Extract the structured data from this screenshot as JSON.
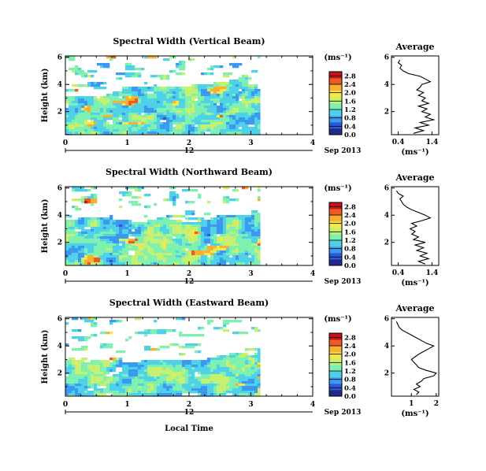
{
  "chart_data": {
    "type": "heatmap",
    "x_common_label": "Local Time",
    "date_label": "Sep 2013",
    "date_tick": "12",
    "colorbar_unit": "(ms⁻¹)",
    "colorbar_ticks": [
      "0.0",
      "0.4",
      "0.8",
      "1.2",
      "1.6",
      "2.0",
      "2.4",
      "2.8"
    ],
    "colorbar_range": [
      0,
      3.0
    ],
    "colormap": [
      "#1f2a8c",
      "#2a5ad6",
      "#3d98f0",
      "#4fd1e8",
      "#7ef0b0",
      "#c8f070",
      "#f6e84a",
      "#f7b030",
      "#ee5a22",
      "#c8121a"
    ],
    "panels": [
      {
        "title": "Spectral Width (Vertical Beam)",
        "ylabel": "Height (km)",
        "x_ticks": [
          "0",
          "1",
          "2",
          "3",
          "4"
        ],
        "xlim": [
          0,
          4
        ],
        "y_ticks": [
          "2",
          "4",
          "6"
        ],
        "ylim": [
          0.3,
          6.1
        ],
        "x_end": 3.15,
        "avg_title": "Average",
        "avg_xlabel": "(ms⁻¹)",
        "avg_x_ticks": [
          "0.4",
          "1.4"
        ],
        "avg_xlim": [
          0.2,
          1.6
        ],
        "avg_heights": [
          0.4,
          0.6,
          0.8,
          1.0,
          1.2,
          1.4,
          1.6,
          1.8,
          2.0,
          2.2,
          2.4,
          2.6,
          2.8,
          3.0,
          3.2,
          3.4,
          3.6,
          3.8,
          4.0,
          4.2,
          4.4,
          4.6,
          4.8,
          5.0,
          5.2,
          5.4,
          5.6,
          5.8
        ],
        "avg_values": [
          0.85,
          1.15,
          0.9,
          1.3,
          1.05,
          1.45,
          1.2,
          1.35,
          1.1,
          1.25,
          1.0,
          1.3,
          1.1,
          1.2,
          1.0,
          1.15,
          0.95,
          1.05,
          1.1,
          1.35,
          1.2,
          1.05,
          0.7,
          0.55,
          0.45,
          0.5,
          0.4,
          0.45
        ]
      },
      {
        "title": "Spectral Width (Northward Beam)",
        "ylabel": "Height (km)",
        "x_ticks": [
          "0",
          "1",
          "2",
          "3",
          "4"
        ],
        "xlim": [
          0,
          4
        ],
        "y_ticks": [
          "2",
          "4",
          "6"
        ],
        "ylim": [
          0.3,
          6.1
        ],
        "x_end": 3.15,
        "avg_title": "Average",
        "avg_xlabel": "(ms⁻¹)",
        "avg_x_ticks": [
          "0.4",
          "1.4"
        ],
        "avg_xlim": [
          0.2,
          1.6
        ],
        "avg_heights": [
          0.4,
          0.6,
          0.8,
          1.0,
          1.2,
          1.4,
          1.6,
          1.8,
          2.0,
          2.2,
          2.4,
          2.6,
          2.8,
          3.0,
          3.2,
          3.4,
          3.6,
          3.8,
          4.0,
          4.2,
          4.4,
          4.6,
          4.8,
          5.0,
          5.2,
          5.4,
          5.6,
          5.8
        ],
        "avg_values": [
          1.2,
          1.0,
          1.3,
          1.05,
          1.25,
          0.95,
          1.15,
          0.9,
          1.2,
          0.85,
          1.0,
          0.8,
          0.9,
          0.75,
          0.95,
          0.8,
          1.1,
          1.35,
          1.2,
          1.0,
          0.8,
          0.65,
          0.55,
          0.5,
          0.45,
          0.55,
          0.4,
          0.35
        ]
      },
      {
        "title": "Spectral Width (Eastward Beam)",
        "ylabel": "Height (km)",
        "x_ticks": [
          "0",
          "1",
          "2",
          "3",
          "4"
        ],
        "xlim": [
          0,
          4
        ],
        "y_ticks": [
          "2",
          "4",
          "6"
        ],
        "ylim": [
          0.3,
          6.1
        ],
        "x_end": 3.15,
        "avg_title": "Average",
        "avg_xlabel": "(ms⁻¹)",
        "avg_x_ticks": [
          "1",
          "2"
        ],
        "avg_xlim": [
          0.2,
          2.1
        ],
        "avg_heights": [
          0.4,
          0.6,
          0.8,
          1.0,
          1.2,
          1.4,
          1.6,
          1.8,
          2.0,
          2.2,
          2.4,
          2.6,
          2.8,
          3.0,
          3.2,
          3.4,
          3.6,
          3.8,
          4.0,
          4.2,
          4.4,
          4.6,
          4.8,
          5.0,
          5.2,
          5.4,
          5.6,
          5.8
        ],
        "avg_values": [
          1.2,
          1.3,
          1.1,
          1.35,
          1.2,
          1.4,
          1.5,
          1.9,
          2.0,
          1.6,
          1.3,
          1.2,
          1.1,
          1.0,
          1.15,
          1.3,
          1.5,
          1.7,
          1.9,
          1.6,
          1.4,
          1.2,
          1.0,
          0.8,
          0.6,
          0.5,
          0.45,
          0.4
        ]
      }
    ]
  }
}
